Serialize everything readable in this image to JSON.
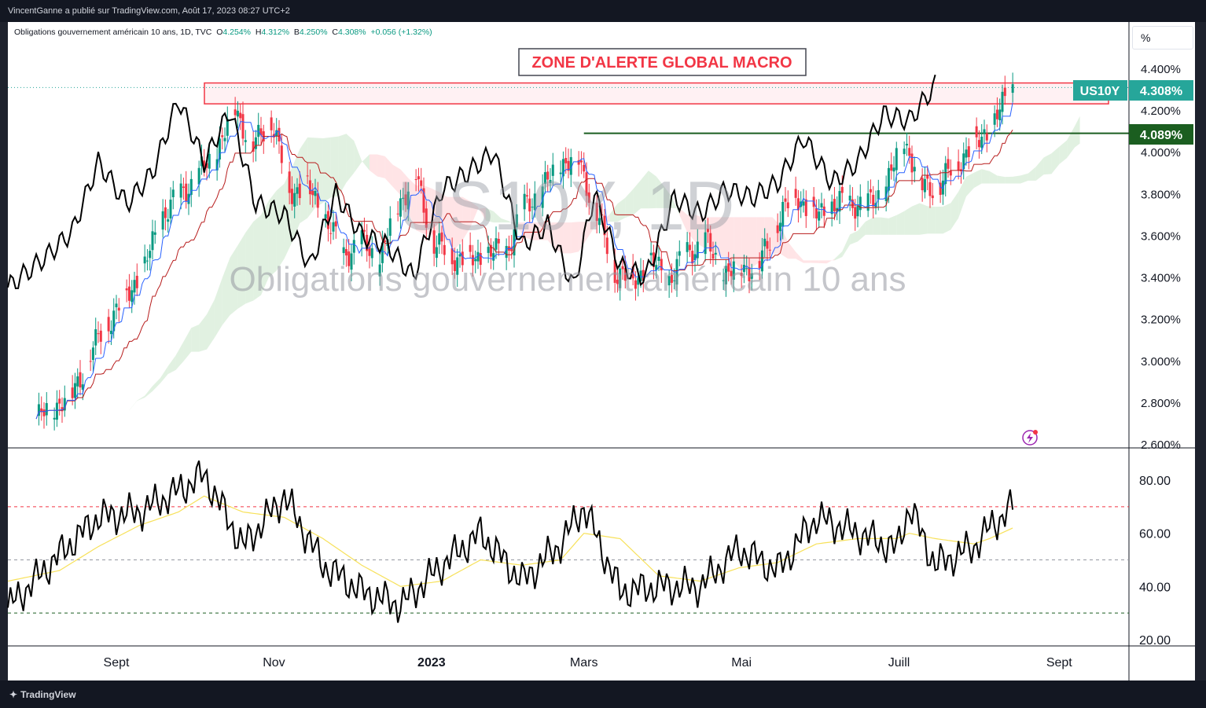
{
  "header": {
    "publisher": "VincentGanne a publié sur TradingView.com, Août 17, 2023 08:27 UTC+2"
  },
  "legend": {
    "instrument": "Obligations gouvernement américain 10 ans, 1D, TVC",
    "o_label": "O",
    "o_value": "4.254%",
    "h_label": "H",
    "h_value": "4.312%",
    "b_label": "B",
    "b_value": "4.250%",
    "c_label": "C",
    "c_value": "4.308%",
    "change": "+0.056 (+1.32%)"
  },
  "scale_button": "%",
  "watermark": {
    "symbol": "US10Y, 1D",
    "description": "Obligations gouvernement américain 10 ans"
  },
  "annotation": {
    "zone_label": "ZONE D'ALERTE GLOBAL MACRO"
  },
  "price_tags": {
    "symbol_tag": "US10Y",
    "last_price": "4.308%",
    "level": "4.089%"
  },
  "footer": {
    "brand": "TradingView"
  },
  "colors": {
    "up": "#089981",
    "down": "#f23645",
    "overlay_line": "#000000",
    "kijun": "#b71c1c",
    "tenkan": "#2962ff",
    "rsi_ma": "#f7e15a",
    "zone": "#f23645",
    "level_line": "#1b5e20"
  },
  "chart_data": [
    {
      "type": "candlestick",
      "title": "Obligations gouvernement américain 10 ans, 1D, TVC",
      "ylim": [
        2.6,
        4.5
      ],
      "y_ticks": [
        "4.400%",
        "4.200%",
        "4.000%",
        "3.800%",
        "3.600%",
        "3.400%",
        "3.200%",
        "3.000%",
        "2.800%",
        "2.600%"
      ],
      "y_tick_values": [
        4.4,
        4.2,
        4.0,
        3.8,
        3.6,
        3.4,
        3.2,
        3.0,
        2.8,
        2.6
      ],
      "x_ticks": [
        "Sept",
        "Nov",
        "2023",
        "Mars",
        "Mai",
        "Juill",
        "Sept"
      ],
      "x_tick_dates": [
        "2022-09-01",
        "2022-11-01",
        "2023-01-01",
        "2023-03-01",
        "2023-05-01",
        "2023-07-01",
        "2023-09-01"
      ],
      "x_range": [
        "2022-07-21",
        "2023-09-28"
      ],
      "series_close": [
        {
          "date": "2022-08-01",
          "value": 2.72
        },
        {
          "date": "2022-08-08",
          "value": 2.78
        },
        {
          "date": "2022-08-15",
          "value": 2.84
        },
        {
          "date": "2022-08-22",
          "value": 3.03
        },
        {
          "date": "2022-08-29",
          "value": 3.19
        },
        {
          "date": "2022-09-05",
          "value": 3.31
        },
        {
          "date": "2022-09-12",
          "value": 3.45
        },
        {
          "date": "2022-09-19",
          "value": 3.7
        },
        {
          "date": "2022-09-26",
          "value": 3.8
        },
        {
          "date": "2022-10-03",
          "value": 3.89
        },
        {
          "date": "2022-10-10",
          "value": 4.01
        },
        {
          "date": "2022-10-17",
          "value": 4.21
        },
        {
          "date": "2022-10-24",
          "value": 4.02
        },
        {
          "date": "2022-10-31",
          "value": 4.16
        },
        {
          "date": "2022-11-07",
          "value": 3.81
        },
        {
          "date": "2022-11-14",
          "value": 3.83
        },
        {
          "date": "2022-11-21",
          "value": 3.68
        },
        {
          "date": "2022-11-28",
          "value": 3.51
        },
        {
          "date": "2022-12-05",
          "value": 3.57
        },
        {
          "date": "2022-12-12",
          "value": 3.48
        },
        {
          "date": "2022-12-19",
          "value": 3.75
        },
        {
          "date": "2022-12-26",
          "value": 3.88
        },
        {
          "date": "2023-01-02",
          "value": 3.56
        },
        {
          "date": "2023-01-09",
          "value": 3.5
        },
        {
          "date": "2023-01-16",
          "value": 3.48
        },
        {
          "date": "2023-01-23",
          "value": 3.51
        },
        {
          "date": "2023-01-30",
          "value": 3.53
        },
        {
          "date": "2023-02-06",
          "value": 3.74
        },
        {
          "date": "2023-02-13",
          "value": 3.82
        },
        {
          "date": "2023-02-20",
          "value": 3.95
        },
        {
          "date": "2023-02-27",
          "value": 3.96
        },
        {
          "date": "2023-03-06",
          "value": 3.7
        },
        {
          "date": "2023-03-13",
          "value": 3.43
        },
        {
          "date": "2023-03-20",
          "value": 3.38
        },
        {
          "date": "2023-03-27",
          "value": 3.47
        },
        {
          "date": "2023-04-03",
          "value": 3.39
        },
        {
          "date": "2023-04-10",
          "value": 3.52
        },
        {
          "date": "2023-04-17",
          "value": 3.57
        },
        {
          "date": "2023-04-24",
          "value": 3.42
        },
        {
          "date": "2023-05-01",
          "value": 3.44
        },
        {
          "date": "2023-05-08",
          "value": 3.46
        },
        {
          "date": "2023-05-15",
          "value": 3.67
        },
        {
          "date": "2023-05-22",
          "value": 3.8
        },
        {
          "date": "2023-05-29",
          "value": 3.69
        },
        {
          "date": "2023-06-05",
          "value": 3.74
        },
        {
          "date": "2023-06-12",
          "value": 3.76
        },
        {
          "date": "2023-06-19",
          "value": 3.74
        },
        {
          "date": "2023-06-26",
          "value": 3.84
        },
        {
          "date": "2023-07-03",
          "value": 4.06
        },
        {
          "date": "2023-07-10",
          "value": 3.83
        },
        {
          "date": "2023-07-17",
          "value": 3.84
        },
        {
          "date": "2023-07-24",
          "value": 3.96
        },
        {
          "date": "2023-07-31",
          "value": 4.04
        },
        {
          "date": "2023-08-07",
          "value": 4.15
        },
        {
          "date": "2023-08-14",
          "value": 4.308
        }
      ],
      "overlay_series": [
        {
          "date": "2022-07-21",
          "value": 3.35
        },
        {
          "date": "2022-08-05",
          "value": 3.5
        },
        {
          "date": "2022-08-15",
          "value": 3.62
        },
        {
          "date": "2022-08-25",
          "value": 3.95
        },
        {
          "date": "2022-09-05",
          "value": 3.75
        },
        {
          "date": "2022-09-15",
          "value": 3.9
        },
        {
          "date": "2022-09-25",
          "value": 4.25
        },
        {
          "date": "2022-10-05",
          "value": 3.95
        },
        {
          "date": "2022-10-15",
          "value": 4.2
        },
        {
          "date": "2022-10-25",
          "value": 3.75
        },
        {
          "date": "2022-11-05",
          "value": 3.7
        },
        {
          "date": "2022-11-15",
          "value": 3.45
        },
        {
          "date": "2022-11-25",
          "value": 3.8
        },
        {
          "date": "2022-12-05",
          "value": 3.6
        },
        {
          "date": "2022-12-15",
          "value": 3.55
        },
        {
          "date": "2022-12-25",
          "value": 3.4
        },
        {
          "date": "2023-01-05",
          "value": 3.82
        },
        {
          "date": "2023-01-15",
          "value": 3.9
        },
        {
          "date": "2023-01-25",
          "value": 4.0
        },
        {
          "date": "2023-02-05",
          "value": 3.55
        },
        {
          "date": "2023-02-15",
          "value": 3.65
        },
        {
          "date": "2023-02-25",
          "value": 3.35
        },
        {
          "date": "2023-03-05",
          "value": 3.8
        },
        {
          "date": "2023-03-15",
          "value": 3.45
        },
        {
          "date": "2023-03-25",
          "value": 3.4
        },
        {
          "date": "2023-04-05",
          "value": 3.78
        },
        {
          "date": "2023-04-15",
          "value": 3.7
        },
        {
          "date": "2023-04-25",
          "value": 3.82
        },
        {
          "date": "2023-05-05",
          "value": 3.78
        },
        {
          "date": "2023-05-15",
          "value": 3.85
        },
        {
          "date": "2023-05-25",
          "value": 4.07
        },
        {
          "date": "2023-06-05",
          "value": 3.85
        },
        {
          "date": "2023-06-15",
          "value": 3.95
        },
        {
          "date": "2023-06-25",
          "value": 4.18
        },
        {
          "date": "2023-07-05",
          "value": 4.15
        },
        {
          "date": "2023-07-15",
          "value": 4.32
        }
      ],
      "zone": {
        "from": "2022-10-15",
        "to": "2023-09-20",
        "low": 4.23,
        "high": 4.33
      },
      "level": {
        "from": "2023-03-01",
        "value": 4.089
      }
    },
    {
      "type": "line",
      "title": "",
      "ylim": [
        18,
        90
      ],
      "y_ticks": [
        "80.00",
        "60.00",
        "40.00",
        "20.00"
      ],
      "y_tick_values": [
        80,
        60,
        40,
        20
      ],
      "bands": [
        70,
        50,
        30
      ],
      "series": [
        {
          "values_dates": [
            "2022-07-21",
            "2022-08-10",
            "2022-08-25",
            "2022-09-10",
            "2022-09-25",
            "2022-10-05",
            "2022-10-20",
            "2022-11-05",
            "2022-11-20",
            "2022-12-05",
            "2022-12-20",
            "2023-01-05",
            "2023-01-20",
            "2023-02-05",
            "2023-02-20",
            "2023-03-01",
            "2023-03-15",
            "2023-03-30",
            "2023-04-15",
            "2023-04-30",
            "2023-05-15",
            "2023-05-30",
            "2023-06-15",
            "2023-06-30",
            "2023-07-05",
            "2023-07-15",
            "2023-07-30",
            "2023-08-05",
            "2023-08-14"
          ],
          "values": [
            32,
            52,
            66,
            68,
            76,
            82,
            55,
            74,
            48,
            38,
            33,
            48,
            60,
            42,
            56,
            70,
            38,
            40,
            40,
            54,
            46,
            66,
            60,
            54,
            70,
            48,
            55,
            62,
            70
          ]
        },
        {
          "values_dates": [
            "2022-07-21",
            "2022-08-10",
            "2022-08-25",
            "2022-09-10",
            "2022-09-25",
            "2022-10-05",
            "2022-10-20",
            "2022-11-05",
            "2022-11-20",
            "2022-12-05",
            "2022-12-20",
            "2023-01-05",
            "2023-01-20",
            "2023-02-05",
            "2023-02-20",
            "2023-03-01",
            "2023-03-15",
            "2023-03-30",
            "2023-04-15",
            "2023-04-30",
            "2023-05-15",
            "2023-05-30",
            "2023-06-15",
            "2023-06-30",
            "2023-07-05",
            "2023-07-15",
            "2023-07-30",
            "2023-08-05",
            "2023-08-14"
          ],
          "values": [
            42,
            46,
            55,
            63,
            68,
            74,
            68,
            66,
            58,
            48,
            40,
            42,
            50,
            48,
            50,
            60,
            58,
            44,
            42,
            47,
            49,
            56,
            58,
            58,
            60,
            58,
            56,
            58,
            62
          ]
        }
      ]
    }
  ]
}
